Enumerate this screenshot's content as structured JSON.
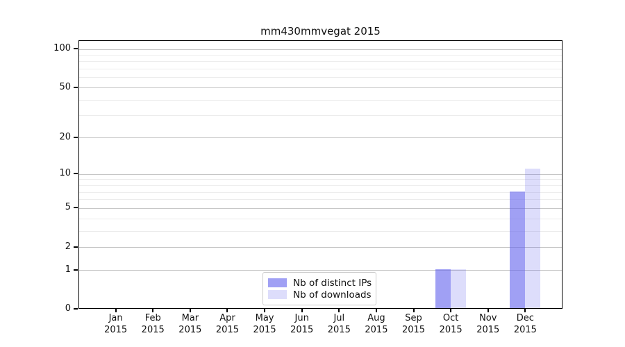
{
  "chart_data": {
    "type": "bar",
    "title": "mm430mmvegat 2015",
    "categories": [
      "Jan",
      "Feb",
      "Mar",
      "Apr",
      "May",
      "Jun",
      "Jul",
      "Aug",
      "Sep",
      "Oct",
      "Nov",
      "Dec"
    ],
    "category_year": "2015",
    "series": [
      {
        "name": "Nb of distinct IPs",
        "color": "rgba(102,102,238,0.62)",
        "values": [
          0,
          0,
          0,
          0,
          0,
          0,
          0,
          0,
          0,
          1,
          0,
          7
        ]
      },
      {
        "name": "Nb of downloads",
        "color": "rgba(102,102,238,0.22)",
        "values": [
          0,
          0,
          0,
          0,
          0,
          0,
          0,
          0,
          0,
          1,
          0,
          11
        ]
      }
    ],
    "yscale": "log1p",
    "y_max_value": 100,
    "ylim": [
      0,
      116
    ],
    "y_ticks": [
      0,
      1,
      2,
      5,
      10,
      20,
      50,
      100
    ],
    "y_minor_gridlines": [
      3,
      4,
      6,
      7,
      8,
      9,
      30,
      40,
      60,
      70,
      80,
      90
    ],
    "grid": "on",
    "legend_position": "lower center, inside plot"
  },
  "colors": {
    "major_grid": "#c6c6c6",
    "minor_grid": "#ececec",
    "axis": "#000000",
    "background": "#ffffff"
  }
}
